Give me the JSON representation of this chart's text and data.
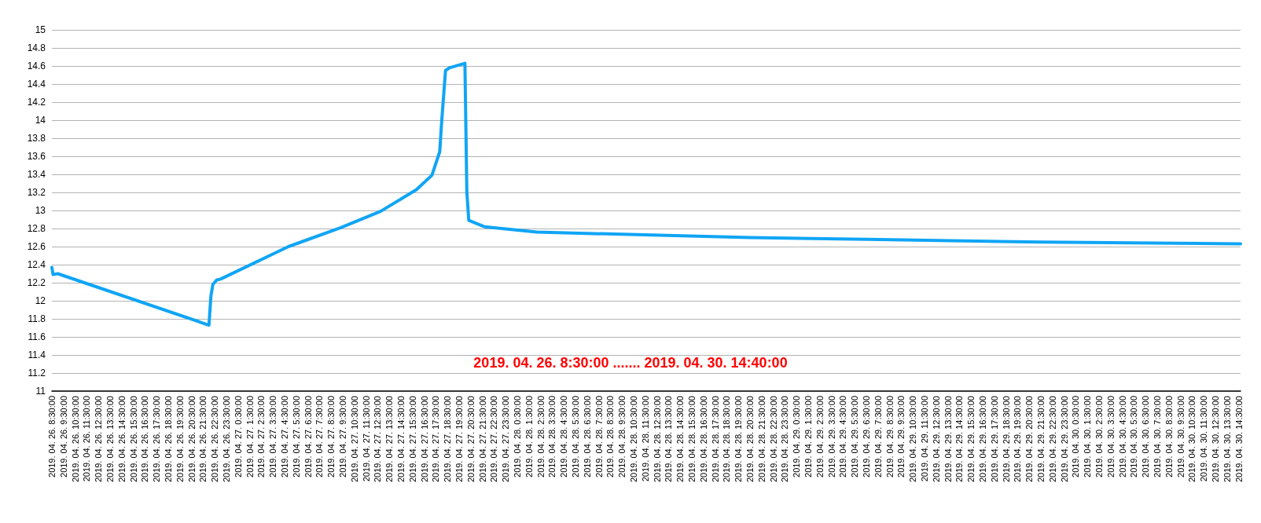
{
  "chart_data": {
    "type": "line",
    "x": [
      "2019-04-26T08:30",
      "2019-04-26T08:36",
      "2019-04-26T09:00",
      "2019-04-26T22:00",
      "2019-04-26T22:10",
      "2019-04-26T22:20",
      "2019-04-26T22:40",
      "2019-04-26T23:00",
      "2019-04-27T04:50",
      "2019-04-27T09:20",
      "2019-04-27T12:45",
      "2019-04-27T15:50",
      "2019-04-27T17:10",
      "2019-04-27T17:50",
      "2019-04-27T18:00",
      "2019-04-27T18:20",
      "2019-04-27T18:40",
      "2019-04-27T20:00",
      "2019-04-27T20:10",
      "2019-04-27T20:20",
      "2019-04-27T21:40",
      "2019-04-28T02:10",
      "2019-04-28T20:30",
      "2019-04-29T06:30",
      "2019-04-29T21:30",
      "2019-04-30T14:30",
      "2019-04-30T14:40"
    ],
    "series": [
      {
        "color": "#10a5f5",
        "values": [
          12.37,
          12.29,
          12.3,
          11.73,
          12.05,
          12.18,
          12.23,
          12.24,
          12.6,
          12.81,
          12.99,
          13.23,
          13.39,
          13.65,
          13.98,
          14.55,
          14.58,
          14.63,
          13.2,
          12.89,
          12.82,
          12.76,
          12.7,
          12.68,
          12.65,
          12.63,
          12.63
        ]
      }
    ],
    "xlim": [
      "2019-04-26T08:30",
      "2019-04-30T14:40"
    ],
    "xticks": [
      {
        "value": "2019-04-26T08:30",
        "label": "2019. 04. 26. 8:30:00"
      },
      {
        "value": "2019-04-26T09:30",
        "label": "2019. 04. 26. 9:30:00"
      },
      {
        "value": "2019-04-26T10:30",
        "label": "2019. 04. 26. 10:30:00"
      },
      {
        "value": "2019-04-26T11:30",
        "label": "2019. 04. 26. 11:30:00"
      },
      {
        "value": "2019-04-26T12:30",
        "label": "2019. 04. 26. 12:30:00"
      },
      {
        "value": "2019-04-26T13:30",
        "label": "2019. 04. 26. 13:30:00"
      },
      {
        "value": "2019-04-26T14:30",
        "label": "2019. 04. 26. 14:30:00"
      },
      {
        "value": "2019-04-26T15:30",
        "label": "2019. 04. 26. 15:30:00"
      },
      {
        "value": "2019-04-26T16:30",
        "label": "2019. 04. 26. 16:30:00"
      },
      {
        "value": "2019-04-26T17:30",
        "label": "2019. 04. 26. 17:30:00"
      },
      {
        "value": "2019-04-26T18:30",
        "label": "2019. 04. 26. 18:30:00"
      },
      {
        "value": "2019-04-26T19:30",
        "label": "2019. 04. 26. 19:30:00"
      },
      {
        "value": "2019-04-26T20:30",
        "label": "2019. 04. 26. 20:30:00"
      },
      {
        "value": "2019-04-26T21:30",
        "label": "2019. 04. 26. 21:30:00"
      },
      {
        "value": "2019-04-26T22:30",
        "label": "2019. 04. 26. 22:30:00"
      },
      {
        "value": "2019-04-26T23:30",
        "label": "2019. 04. 26. 23:30:00"
      },
      {
        "value": "2019-04-27T00:30",
        "label": "2019. 04. 27. 0:30:00"
      },
      {
        "value": "2019-04-27T01:30",
        "label": "2019. 04. 27. 1:30:00"
      },
      {
        "value": "2019-04-27T02:30",
        "label": "2019. 04. 27. 2:30:00"
      },
      {
        "value": "2019-04-27T03:30",
        "label": "2019. 04. 27. 3:30:00"
      },
      {
        "value": "2019-04-27T04:30",
        "label": "2019. 04. 27. 4:30:00"
      },
      {
        "value": "2019-04-27T05:30",
        "label": "2019. 04. 27. 5:30:00"
      },
      {
        "value": "2019-04-27T06:30",
        "label": "2019. 04. 27. 6:30:00"
      },
      {
        "value": "2019-04-27T07:30",
        "label": "2019. 04. 27. 7:30:00"
      },
      {
        "value": "2019-04-27T08:30",
        "label": "2019. 04. 27. 8:30:00"
      },
      {
        "value": "2019-04-27T09:30",
        "label": "2019. 04. 27. 9:30:00"
      },
      {
        "value": "2019-04-27T10:30",
        "label": "2019. 04. 27. 10:30:00"
      },
      {
        "value": "2019-04-27T11:30",
        "label": "2019. 04. 27. 11:30:00"
      },
      {
        "value": "2019-04-27T12:30",
        "label": "2019. 04. 27. 12:30:00"
      },
      {
        "value": "2019-04-27T13:30",
        "label": "2019. 04. 27. 13:30:00"
      },
      {
        "value": "2019-04-27T14:30",
        "label": "2019. 04. 27. 14:30:00"
      },
      {
        "value": "2019-04-27T15:30",
        "label": "2019. 04. 27. 15:30:00"
      },
      {
        "value": "2019-04-27T16:30",
        "label": "2019. 04. 27. 16:30:00"
      },
      {
        "value": "2019-04-27T17:30",
        "label": "2019. 04. 27. 17:30:00"
      },
      {
        "value": "2019-04-27T18:30",
        "label": "2019. 04. 27. 18:30:00"
      },
      {
        "value": "2019-04-27T19:30",
        "label": "2019. 04. 27. 19:30:00"
      },
      {
        "value": "2019-04-27T20:30",
        "label": "2019. 04. 27. 20:30:00"
      },
      {
        "value": "2019-04-27T21:30",
        "label": "2019. 04. 27. 21:30:00"
      },
      {
        "value": "2019-04-27T22:30",
        "label": "2019. 04. 27. 22:30:00"
      },
      {
        "value": "2019-04-27T23:30",
        "label": "2019. 04. 27. 23:30:00"
      },
      {
        "value": "2019-04-28T00:30",
        "label": "2019. 04. 28. 0:30:00"
      },
      {
        "value": "2019-04-28T01:30",
        "label": "2019. 04. 28. 1:30:00"
      },
      {
        "value": "2019-04-28T02:30",
        "label": "2019. 04. 28. 2:30:00"
      },
      {
        "value": "2019-04-28T03:30",
        "label": "2019. 04. 28. 3:30:00"
      },
      {
        "value": "2019-04-28T04:30",
        "label": "2019. 04. 28. 4:30:00"
      },
      {
        "value": "2019-04-28T05:30",
        "label": "2019. 04. 28. 5:30:00"
      },
      {
        "value": "2019-04-28T06:30",
        "label": "2019. 04. 28. 6:30:00"
      },
      {
        "value": "2019-04-28T07:30",
        "label": "2019. 04. 28. 7:30:00"
      },
      {
        "value": "2019-04-28T08:30",
        "label": "2019. 04. 28. 8:30:00"
      },
      {
        "value": "2019-04-28T09:30",
        "label": "2019. 04. 28. 9:30:00"
      },
      {
        "value": "2019-04-28T10:30",
        "label": "2019. 04. 28. 10:30:00"
      },
      {
        "value": "2019-04-28T11:30",
        "label": "2019. 04. 28. 11:30:00"
      },
      {
        "value": "2019-04-28T12:30",
        "label": "2019. 04. 28. 12:30:00"
      },
      {
        "value": "2019-04-28T13:30",
        "label": "2019. 04. 28. 13:30:00"
      },
      {
        "value": "2019-04-28T14:30",
        "label": "2019. 04. 28. 14:30:00"
      },
      {
        "value": "2019-04-28T15:30",
        "label": "2019. 04. 28. 15:30:00"
      },
      {
        "value": "2019-04-28T16:30",
        "label": "2019. 04. 28. 16:30:00"
      },
      {
        "value": "2019-04-28T17:30",
        "label": "2019. 04. 28. 17:30:00"
      },
      {
        "value": "2019-04-28T18:30",
        "label": "2019. 04. 28. 18:30:00"
      },
      {
        "value": "2019-04-28T19:30",
        "label": "2019. 04. 28. 19:30:00"
      },
      {
        "value": "2019-04-28T20:30",
        "label": "2019. 04. 28. 20:30:00"
      },
      {
        "value": "2019-04-28T21:30",
        "label": "2019. 04. 28. 21:30:00"
      },
      {
        "value": "2019-04-28T22:30",
        "label": "2019. 04. 28. 22:30:00"
      },
      {
        "value": "2019-04-28T23:30",
        "label": "2019. 04. 28. 23:30:00"
      },
      {
        "value": "2019-04-29T00:30",
        "label": "2019. 04. 29. 0:30:00"
      },
      {
        "value": "2019-04-29T01:30",
        "label": "2019. 04. 29. 1:30:00"
      },
      {
        "value": "2019-04-29T02:30",
        "label": "2019. 04. 29. 2:30:00"
      },
      {
        "value": "2019-04-29T03:30",
        "label": "2019. 04. 29. 3:30:00"
      },
      {
        "value": "2019-04-29T04:30",
        "label": "2019. 04. 29. 4:30:00"
      },
      {
        "value": "2019-04-29T05:30",
        "label": "2019. 04. 29. 5:30:00"
      },
      {
        "value": "2019-04-29T06:30",
        "label": "2019. 04. 29. 6:30:00"
      },
      {
        "value": "2019-04-29T07:30",
        "label": "2019. 04. 29. 7:30:00"
      },
      {
        "value": "2019-04-29T08:30",
        "label": "2019. 04. 29. 8:30:00"
      },
      {
        "value": "2019-04-29T09:30",
        "label": "2019. 04. 29. 9:30:00"
      },
      {
        "value": "2019-04-29T10:30",
        "label": "2019. 04. 29. 10:30:00"
      },
      {
        "value": "2019-04-29T11:30",
        "label": "2019. 04. 29. 11:30:00"
      },
      {
        "value": "2019-04-29T12:30",
        "label": "2019. 04. 29. 12:30:00"
      },
      {
        "value": "2019-04-29T13:30",
        "label": "2019. 04. 29. 13:30:00"
      },
      {
        "value": "2019-04-29T14:30",
        "label": "2019. 04. 29. 14:30:00"
      },
      {
        "value": "2019-04-29T15:30",
        "label": "2019. 04. 29. 15:30:00"
      },
      {
        "value": "2019-04-29T16:30",
        "label": "2019. 04. 29. 16:30:00"
      },
      {
        "value": "2019-04-29T17:30",
        "label": "2019. 04. 29. 17:30:00"
      },
      {
        "value": "2019-04-29T18:30",
        "label": "2019. 04. 29. 18:30:00"
      },
      {
        "value": "2019-04-29T19:30",
        "label": "2019. 04. 29. 19:30:00"
      },
      {
        "value": "2019-04-29T20:30",
        "label": "2019. 04. 29. 20:30:00"
      },
      {
        "value": "2019-04-29T21:30",
        "label": "2019. 04. 29. 21:30:00"
      },
      {
        "value": "2019-04-29T22:30",
        "label": "2019. 04. 29. 22:30:00"
      },
      {
        "value": "2019-04-29T23:30",
        "label": "2019. 04. 29. 23:30:00"
      },
      {
        "value": "2019-04-30T00:30",
        "label": "2019. 04. 30. 0:30:00"
      },
      {
        "value": "2019-04-30T01:30",
        "label": "2019. 04. 30. 1:30:00"
      },
      {
        "value": "2019-04-30T02:30",
        "label": "2019. 04. 30. 2:30:00"
      },
      {
        "value": "2019-04-30T03:30",
        "label": "2019. 04. 30. 3:30:00"
      },
      {
        "value": "2019-04-30T04:30",
        "label": "2019. 04. 30. 4:30:00"
      },
      {
        "value": "2019-04-30T05:30",
        "label": "2019. 04. 30. 5:30:00"
      },
      {
        "value": "2019-04-30T06:30",
        "label": "2019. 04. 30. 6:30:00"
      },
      {
        "value": "2019-04-30T07:30",
        "label": "2019. 04. 30. 7:30:00"
      },
      {
        "value": "2019-04-30T08:30",
        "label": "2019. 04. 30. 8:30:00"
      },
      {
        "value": "2019-04-30T09:30",
        "label": "2019. 04. 30. 9:30:00"
      },
      {
        "value": "2019-04-30T10:30",
        "label": "2019. 04. 30. 10:30:00"
      },
      {
        "value": "2019-04-30T11:30",
        "label": "2019. 04. 30. 11:30:00"
      },
      {
        "value": "2019-04-30T12:30",
        "label": "2019. 04. 30. 12:30:00"
      },
      {
        "value": "2019-04-30T13:30",
        "label": "2019. 04. 30. 13:30:00"
      },
      {
        "value": "2019-04-30T14:30",
        "label": "2019. 04. 30. 14:30:00"
      }
    ],
    "ylim": [
      11,
      15
    ],
    "yticks": [
      11,
      11.2,
      11.4,
      11.6,
      11.8,
      12,
      12.2,
      12.4,
      12.6,
      12.8,
      13,
      13.2,
      13.4,
      13.6,
      13.8,
      14,
      14.2,
      14.4,
      14.6,
      14.8,
      15
    ],
    "grid": "y",
    "marker": "none",
    "line_style": "solid",
    "annotations": [
      "2019. 04. 26. 8:30:00 ....... 2019. 04. 30. 14:40:00"
    ]
  }
}
